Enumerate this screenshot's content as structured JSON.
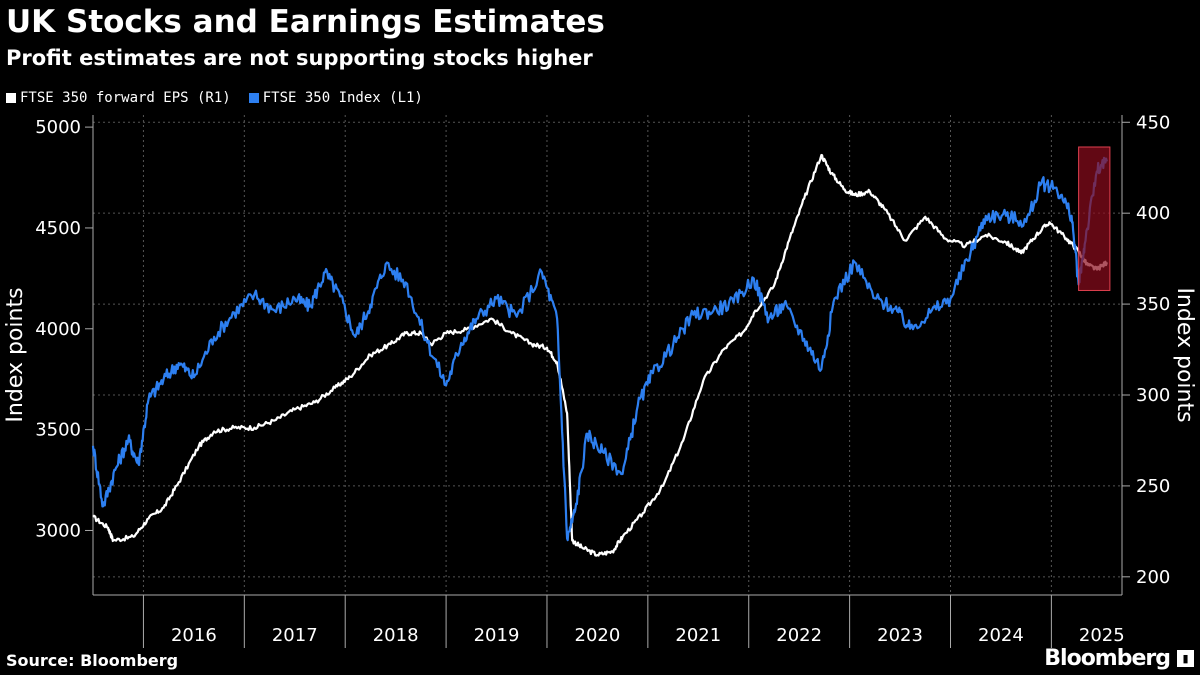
{
  "chart_data": {
    "type": "line",
    "title": "UK Stocks and Earnings Estimates",
    "subtitle": "Profit estimates are not supporting stocks higher",
    "source": "Source: Bloomberg",
    "brand": "Bloomberg",
    "legend_position": "top-left",
    "grid": true,
    "left_axis": {
      "label": "Index points",
      "range": [
        2680,
        5060
      ],
      "ticks": [
        3000,
        3500,
        4000,
        4500,
        5000
      ]
    },
    "right_axis": {
      "label": "Index points",
      "range": [
        190,
        454
      ],
      "ticks": [
        200,
        250,
        300,
        350,
        400,
        450
      ]
    },
    "x_range": [
      2015.5,
      2025.7
    ],
    "x_ticks": [
      "2016",
      "2017",
      "2018",
      "2019",
      "2020",
      "2021",
      "2022",
      "2023",
      "2024",
      "2025"
    ],
    "series": [
      {
        "name": "FTSE 350 forward EPS (R1)",
        "axis": "right",
        "color": "#ffffff",
        "points": [
          [
            2015.5,
            233
          ],
          [
            2015.65,
            227
          ],
          [
            2015.7,
            220
          ],
          [
            2015.9,
            222
          ],
          [
            2016.05,
            232
          ],
          [
            2016.2,
            238
          ],
          [
            2016.35,
            252
          ],
          [
            2016.55,
            272
          ],
          [
            2016.7,
            280
          ],
          [
            2016.9,
            282
          ],
          [
            2017.1,
            282
          ],
          [
            2017.3,
            286
          ],
          [
            2017.5,
            292
          ],
          [
            2017.7,
            296
          ],
          [
            2017.9,
            304
          ],
          [
            2018.05,
            310
          ],
          [
            2018.25,
            322
          ],
          [
            2018.45,
            328
          ],
          [
            2018.6,
            334
          ],
          [
            2018.75,
            334
          ],
          [
            2018.85,
            328
          ],
          [
            2019.0,
            334
          ],
          [
            2019.2,
            336
          ],
          [
            2019.45,
            342
          ],
          [
            2019.65,
            334
          ],
          [
            2019.85,
            328
          ],
          [
            2020.0,
            326
          ],
          [
            2020.1,
            318
          ],
          [
            2020.2,
            290
          ],
          [
            2020.25,
            220
          ],
          [
            2020.35,
            216
          ],
          [
            2020.5,
            212
          ],
          [
            2020.65,
            214
          ],
          [
            2020.75,
            222
          ],
          [
            2020.95,
            235
          ],
          [
            2021.15,
            250
          ],
          [
            2021.35,
            275
          ],
          [
            2021.55,
            308
          ],
          [
            2021.75,
            325
          ],
          [
            2021.95,
            335
          ],
          [
            2022.05,
            345
          ],
          [
            2022.25,
            360
          ],
          [
            2022.4,
            385
          ],
          [
            2022.55,
            408
          ],
          [
            2022.72,
            432
          ],
          [
            2022.82,
            422
          ],
          [
            2022.95,
            413
          ],
          [
            2023.05,
            410
          ],
          [
            2023.2,
            412
          ],
          [
            2023.35,
            402
          ],
          [
            2023.55,
            385
          ],
          [
            2023.75,
            398
          ],
          [
            2023.95,
            386
          ],
          [
            2024.15,
            382
          ],
          [
            2024.35,
            388
          ],
          [
            2024.55,
            384
          ],
          [
            2024.7,
            378
          ],
          [
            2024.85,
            388
          ],
          [
            2024.98,
            395
          ],
          [
            2025.15,
            386
          ],
          [
            2025.27,
            379
          ],
          [
            2025.35,
            372
          ],
          [
            2025.45,
            369
          ],
          [
            2025.55,
            373
          ]
        ]
      },
      {
        "name": "FTSE 350 Index  (L1)",
        "axis": "left",
        "color": "#2d7ff0",
        "points": [
          [
            2015.5,
            3420
          ],
          [
            2015.6,
            3120
          ],
          [
            2015.72,
            3300
          ],
          [
            2015.85,
            3450
          ],
          [
            2015.95,
            3330
          ],
          [
            2016.05,
            3650
          ],
          [
            2016.2,
            3750
          ],
          [
            2016.35,
            3830
          ],
          [
            2016.5,
            3760
          ],
          [
            2016.7,
            3960
          ],
          [
            2016.9,
            4080
          ],
          [
            2017.1,
            4170
          ],
          [
            2017.3,
            4090
          ],
          [
            2017.5,
            4150
          ],
          [
            2017.65,
            4110
          ],
          [
            2017.8,
            4280
          ],
          [
            2017.95,
            4160
          ],
          [
            2018.1,
            3960
          ],
          [
            2018.25,
            4120
          ],
          [
            2018.4,
            4320
          ],
          [
            2018.6,
            4230
          ],
          [
            2018.8,
            3950
          ],
          [
            2019.0,
            3720
          ],
          [
            2019.15,
            3930
          ],
          [
            2019.3,
            4050
          ],
          [
            2019.5,
            4150
          ],
          [
            2019.7,
            4060
          ],
          [
            2019.95,
            4280
          ],
          [
            2020.1,
            4050
          ],
          [
            2020.2,
            2960
          ],
          [
            2020.28,
            3100
          ],
          [
            2020.4,
            3480
          ],
          [
            2020.55,
            3390
          ],
          [
            2020.75,
            3280
          ],
          [
            2020.9,
            3620
          ],
          [
            2021.05,
            3780
          ],
          [
            2021.25,
            3920
          ],
          [
            2021.45,
            4070
          ],
          [
            2021.65,
            4090
          ],
          [
            2021.85,
            4130
          ],
          [
            2022.05,
            4250
          ],
          [
            2022.2,
            4050
          ],
          [
            2022.35,
            4120
          ],
          [
            2022.55,
            3950
          ],
          [
            2022.72,
            3800
          ],
          [
            2022.85,
            4150
          ],
          [
            2023.05,
            4330
          ],
          [
            2023.25,
            4150
          ],
          [
            2023.45,
            4100
          ],
          [
            2023.6,
            4000
          ],
          [
            2023.8,
            4080
          ],
          [
            2024.0,
            4150
          ],
          [
            2024.2,
            4380
          ],
          [
            2024.35,
            4560
          ],
          [
            2024.55,
            4560
          ],
          [
            2024.75,
            4530
          ],
          [
            2024.9,
            4720
          ],
          [
            2025.05,
            4700
          ],
          [
            2025.2,
            4560
          ],
          [
            2025.27,
            4220
          ],
          [
            2025.33,
            4420
          ],
          [
            2025.45,
            4780
          ],
          [
            2025.55,
            4830
          ]
        ]
      }
    ],
    "highlight": {
      "x_range": [
        2025.27,
        2025.58
      ],
      "color": "#8b0b1d"
    }
  }
}
